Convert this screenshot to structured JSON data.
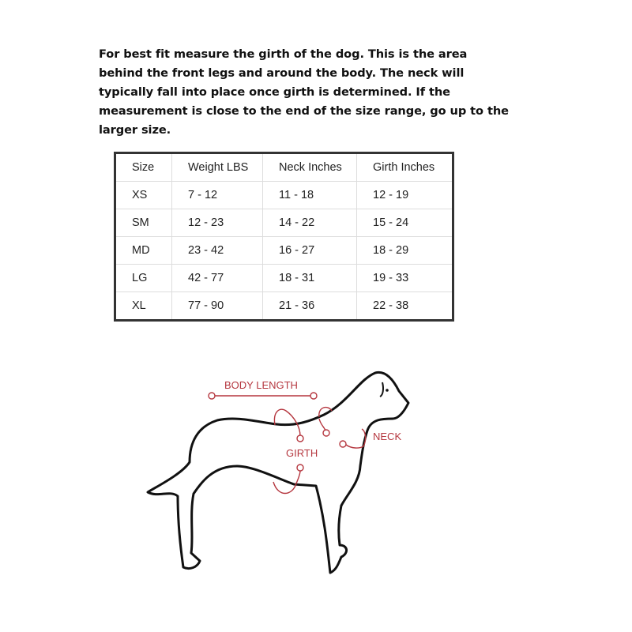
{
  "instructions": "For best fit measure the girth of the dog. This is the area behind the front legs and around the body. The neck will typically fall into place once girth is determined. If the measurement is close to the end of the size range, go up to the larger size.",
  "size_table": {
    "headers": [
      "Size",
      "Weight LBS",
      "Neck Inches",
      "Girth Inches"
    ],
    "rows": [
      [
        "XS",
        "7 - 12",
        "11 - 18",
        "12 - 19"
      ],
      [
        "SM",
        "12 - 23",
        "14 - 22",
        "15 - 24"
      ],
      [
        "MD",
        "23 - 42",
        "16 - 27",
        "18 - 29"
      ],
      [
        "LG",
        "42 - 77",
        "18 - 31",
        "19 - 33"
      ],
      [
        "XL",
        "77 - 90",
        "21 - 36",
        "22 - 38"
      ]
    ]
  },
  "diagram": {
    "labels": {
      "body_length": "BODY LENGTH",
      "girth": "GIRTH",
      "neck": "NECK"
    },
    "accent_color": "#b5373f"
  }
}
